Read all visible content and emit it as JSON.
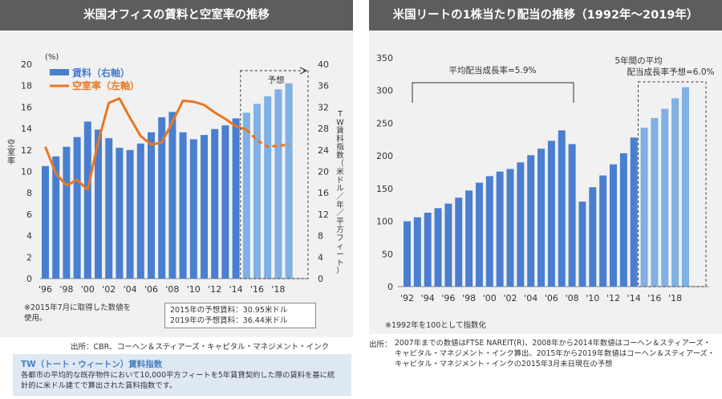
{
  "left": {
    "title": "米国オフィスの賃料と空室率の推移",
    "unit_pct": "(%)",
    "legend_rent": "賃料（右軸）",
    "legend_vacancy": "空室率（左軸）",
    "forecast_label": "予想",
    "left_axis_label": "空室率",
    "right_axis_label": "TW賃料指数（米ドル／年／平方フィート）",
    "note": "※2015年7月に取得した数値を使用。",
    "forecast_2015": "2015年の予想賃料：30.95米ドル",
    "forecast_2019": "2019年の予想賃料：36.44米ドル",
    "source": "出所：CBR、コーヘン＆スティアーズ・キャピタル・マネジメント・インク",
    "tw_title": "TW（トート・ウィートン）賃料指数",
    "tw_body": "各都市の平均的な既存物件において10,000平方フィートを5年賃貸契約した際の賃料を基に統計的に米ドル建てで算出された賃料指数です。"
  },
  "right": {
    "title": "米国リートの1株当たり配当の推移（1992年〜2019年）",
    "avg_growth": "平均配当成長率=5.9%",
    "forecast_avg_line1": "5年間の平均",
    "forecast_avg_line2": "配当成長率予想=6.0%",
    "note": "※1992年を100として指数化",
    "source_label": "出所：",
    "source_body": "2007年までの数値はFTSE NAREIT(R)、2008年から2014年数値はコーヘン＆スティアーズ・キャピタル・マネジメント・インク算出、2015年から2019年数値はコーヘン＆スティアーズ・キャピタル・マネジメント・インクの2015年3月末日現在の予想"
  },
  "colors": {
    "bar": "#4a7fd0",
    "bar_forecast": "#7fb0e6",
    "line": "#e87722"
  },
  "chart_data": [
    {
      "type": "bar",
      "title": "米国オフィスの賃料と空室率の推移",
      "ylabel": "空室率",
      "y2label": "TW賃料指数（米ドル／年／平方フィート）",
      "xticks": [
        "'96",
        "'98",
        "'00",
        "'02",
        "'04",
        "'06",
        "'08",
        "'10",
        "'12",
        "'14",
        "'16",
        "'18"
      ],
      "ylim": [
        0,
        20
      ],
      "y2lim": [
        0,
        40
      ],
      "grid": false,
      "legend": "top-left",
      "series": [
        {
          "name": "賃料（右軸）",
          "type": "bar",
          "axis": "right",
          "x": [
            1996,
            1997,
            1998,
            1999,
            2000,
            2001,
            2002,
            2003,
            2004,
            2005,
            2006,
            2007,
            2008,
            2009,
            2010,
            2011,
            2012,
            2013,
            2014,
            2015,
            2016,
            2017,
            2018,
            2019
          ],
          "values": [
            21.0,
            22.8,
            24.6,
            26.4,
            29.3,
            27.8,
            26.2,
            24.4,
            24.0,
            25.2,
            27.3,
            30.1,
            31.1,
            27.3,
            26.0,
            26.8,
            27.9,
            28.6,
            29.9,
            30.95,
            32.6,
            34.0,
            35.3,
            36.44
          ],
          "forecast_from": 2015
        },
        {
          "name": "空室率（左軸）",
          "type": "line",
          "axis": "left",
          "x": [
            1996,
            1997,
            1998,
            1999,
            2000,
            2001,
            2002,
            2003,
            2004,
            2005,
            2006,
            2007,
            2008,
            2009,
            2010,
            2011,
            2012,
            2013,
            2014,
            2015,
            2016,
            2017,
            2018,
            2019
          ],
          "values": [
            12.3,
            9.8,
            8.7,
            9.2,
            8.3,
            12.8,
            16.4,
            16.8,
            15.0,
            13.3,
            12.5,
            12.7,
            14.6,
            16.6,
            16.5,
            16.2,
            15.5,
            14.9,
            14.2,
            13.9,
            12.9,
            12.3,
            12.4,
            12.5
          ],
          "forecast_from": 2015
        }
      ]
    },
    {
      "type": "bar",
      "title": "米国リートの1株当たり配当の推移（1992年〜2019年）",
      "xticks": [
        "'92",
        "'94",
        "'96",
        "'98",
        "'00",
        "'02",
        "'04",
        "'06",
        "'08",
        "'10",
        "'12",
        "'14",
        "'16",
        "'18"
      ],
      "ylim": [
        0,
        350
      ],
      "yticks": [
        0,
        50,
        100,
        150,
        200,
        250,
        300,
        350
      ],
      "grid": false,
      "x": [
        1992,
        1993,
        1994,
        1995,
        1996,
        1997,
        1998,
        1999,
        2000,
        2001,
        2002,
        2003,
        2004,
        2005,
        2006,
        2007,
        2008,
        2009,
        2010,
        2011,
        2012,
        2013,
        2014,
        2015,
        2016,
        2017,
        2018,
        2019
      ],
      "values": [
        100,
        106,
        113,
        120,
        127,
        136,
        147,
        159,
        169,
        176,
        180,
        190,
        201,
        211,
        223,
        239,
        218,
        130,
        152,
        170,
        187,
        204,
        228,
        243,
        258,
        272,
        288,
        305
      ],
      "forecast_from": 2015,
      "annotations": [
        "平均配当成長率=5.9%",
        "5年間の平均 配当成長率予想=6.0%"
      ]
    }
  ]
}
